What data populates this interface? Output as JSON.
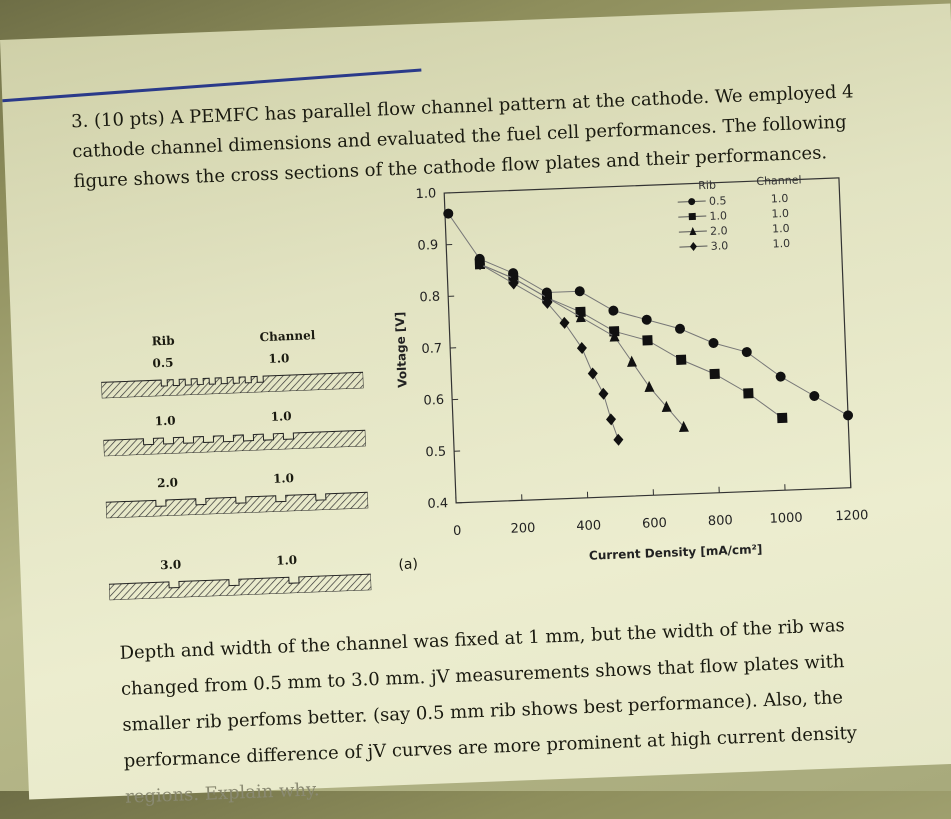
{
  "question": {
    "line1": "3. (10 pts) A PEMFC has parallel flow channel pattern at the cathode. We employed 4",
    "line2": "cathode channel dimensions and evaluated the fuel cell performances. The following",
    "line3": "figure shows the cross sections of the cathode flow plates and their performances."
  },
  "cross_sections": {
    "header_rib": "Rib",
    "header_channel": "Channel",
    "rows": [
      {
        "rib": "0.5",
        "channel": "1.0"
      },
      {
        "rib": "1.0",
        "channel": "1.0"
      },
      {
        "rib": "2.0",
        "channel": "1.0"
      },
      {
        "rib": "3.0",
        "channel": "1.0"
      }
    ],
    "panel_label": "(a)"
  },
  "chart_data": {
    "type": "scatter",
    "title": "",
    "xlabel": "Current Density [mA/cm²]",
    "ylabel": "Voltage [V]",
    "xlim": [
      0,
      1200
    ],
    "ylim": [
      0.4,
      1.0
    ],
    "x_ticks": [
      "0",
      "200",
      "400",
      "600",
      "800",
      "1000",
      "1200"
    ],
    "y_ticks": [
      "0.4",
      "0.5",
      "0.6",
      "0.7",
      "0.8",
      "0.9",
      "1.0"
    ],
    "legend": {
      "header_rib": "Rib",
      "header_channel": "Channel",
      "placement": "top-right"
    },
    "series": [
      {
        "name": "0.5",
        "channel": "1.0",
        "marker": "circle",
        "x": [
          10,
          100,
          200,
          300,
          400,
          500,
          600,
          700,
          800,
          900,
          1000,
          1100,
          1200
        ],
        "y": [
          0.96,
          0.87,
          0.84,
          0.8,
          0.8,
          0.76,
          0.74,
          0.72,
          0.69,
          0.67,
          0.62,
          0.58,
          0.54
        ]
      },
      {
        "name": "1.0",
        "channel": "1.0",
        "marker": "square",
        "x": [
          100,
          200,
          300,
          400,
          500,
          600,
          700,
          800,
          900,
          1000
        ],
        "y": [
          0.86,
          0.83,
          0.79,
          0.76,
          0.72,
          0.7,
          0.66,
          0.63,
          0.59,
          0.54
        ]
      },
      {
        "name": "2.0",
        "channel": "1.0",
        "marker": "triangle",
        "x": [
          100,
          200,
          300,
          400,
          500,
          550,
          600,
          650,
          700
        ],
        "y": [
          0.86,
          0.83,
          0.79,
          0.75,
          0.71,
          0.66,
          0.61,
          0.57,
          0.53
        ]
      },
      {
        "name": "3.0",
        "channel": "1.0",
        "marker": "diamond",
        "x": [
          100,
          200,
          300,
          350,
          400,
          430,
          460,
          480,
          500
        ],
        "y": [
          0.86,
          0.82,
          0.78,
          0.74,
          0.69,
          0.64,
          0.6,
          0.55,
          0.51
        ]
      }
    ]
  },
  "bottom": {
    "line1": "Depth and width of the channel was fixed at 1 mm, but the width of the rib was",
    "line2": "changed from 0.5 mm to 3.0 mm. jV measurements shows that flow plates with",
    "line3": "smaller rib perfoms better. (say 0.5 mm rib shows best performance). Also, the",
    "line4": "performance difference of jV curves are more prominent at high current density",
    "line5": "regions. Explain why."
  }
}
